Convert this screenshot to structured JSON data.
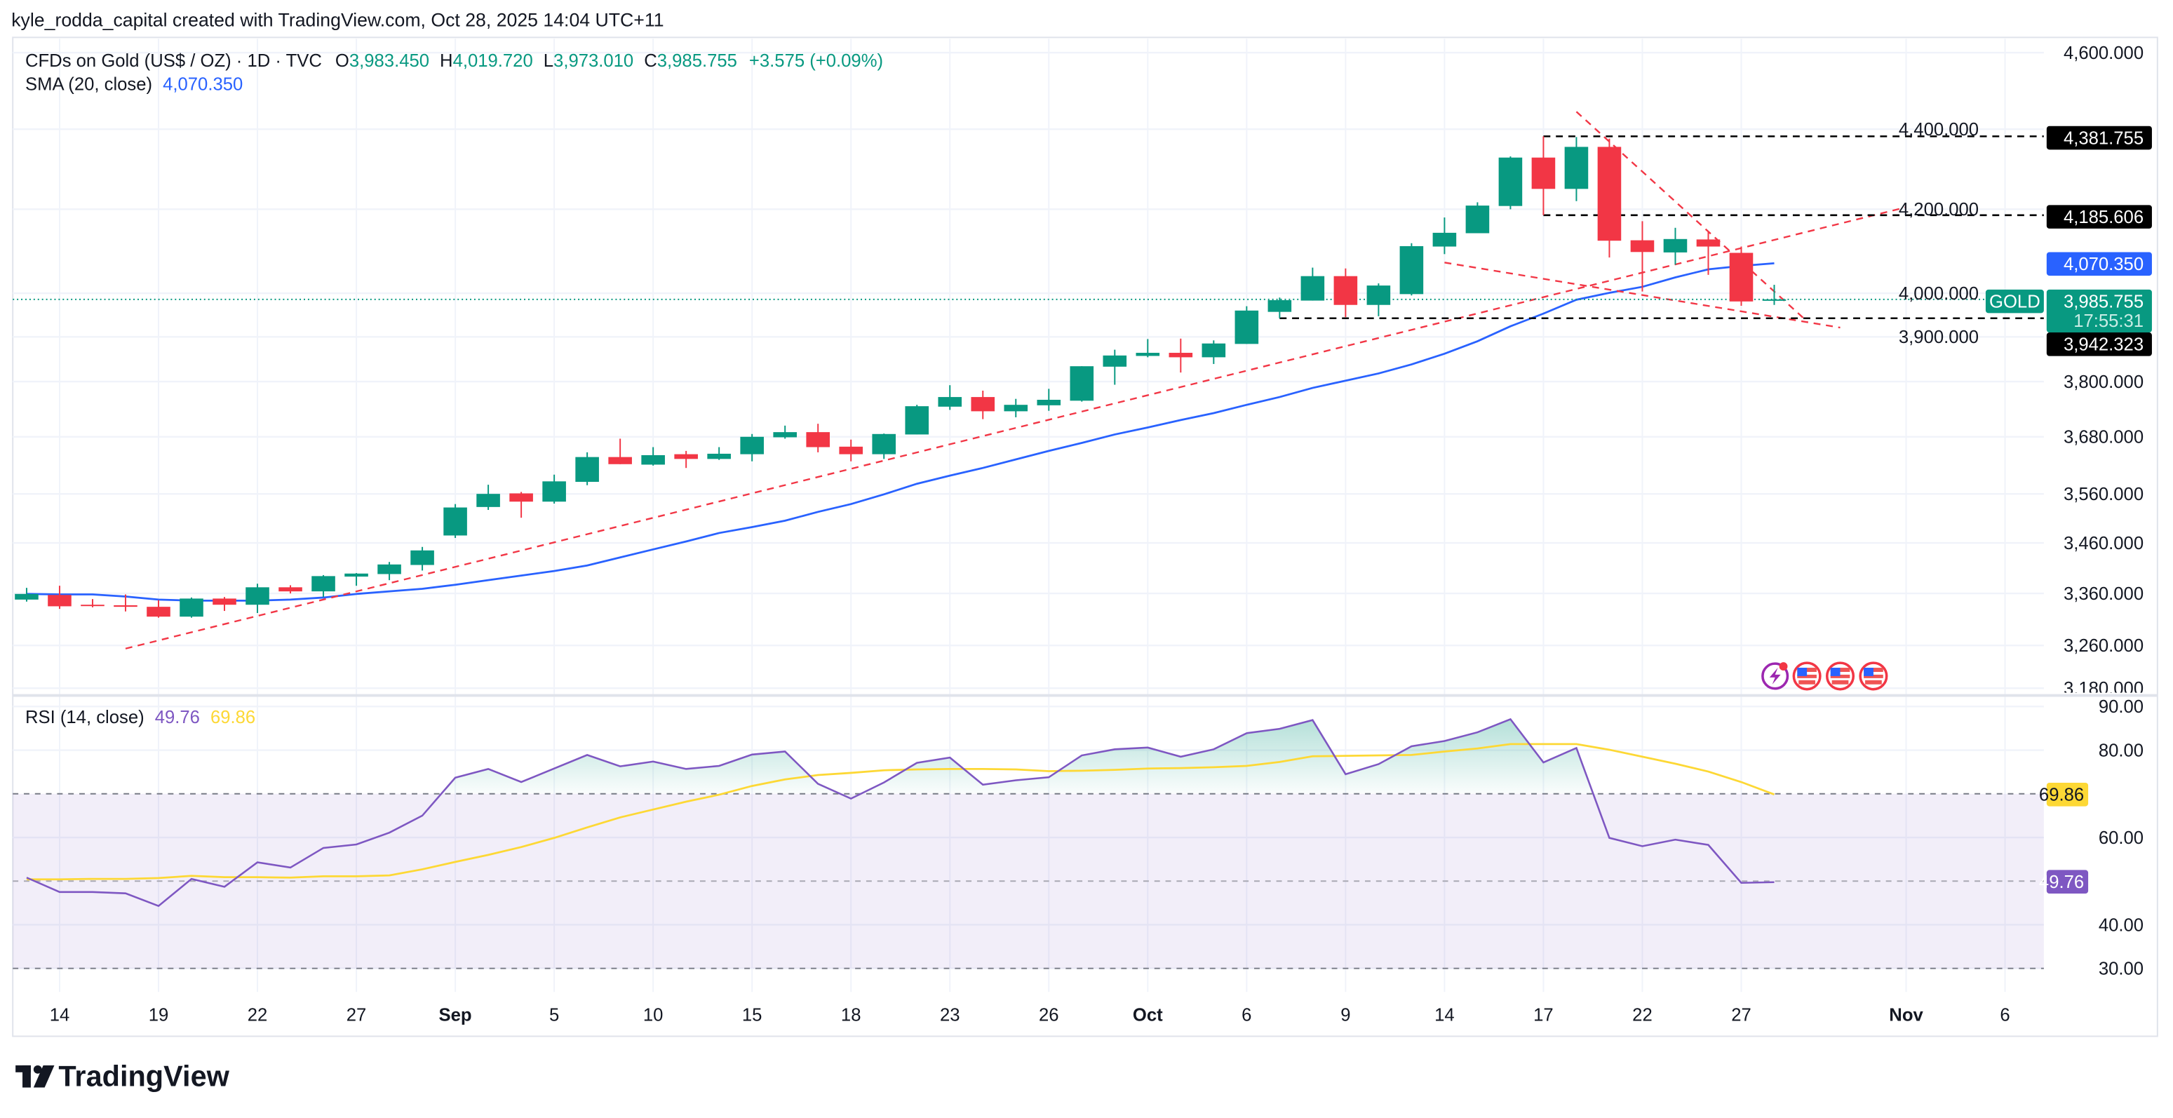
{
  "attribution": "kyle_rodda_capital created with TradingView.com, Oct 28, 2025 14:04 UTC+11",
  "legend": {
    "symbol": "CFDs on Gold (US$ / OZ) · 1D · TVC",
    "o_label": "O",
    "o": "3,983.450",
    "h_label": "H",
    "h": "4,019.720",
    "l_label": "L",
    "l": "3,973.010",
    "c_label": "C",
    "c": "3,985.755",
    "change": "+3.575 (+0.09%)",
    "sma_label": "SMA (20, close)",
    "sma_value": "4,070.350",
    "rsi_label": "RSI (14, close)",
    "rsi_value": "49.76",
    "rsi_ma_value": "69.86"
  },
  "colors": {
    "up": "#089981",
    "down": "#f23645",
    "sma": "#2962ff",
    "rsi": "#7e57c2",
    "rsi_ma": "#fdd835",
    "trendline": "#f23645"
  },
  "badges": {
    "level_high": "4,381.755",
    "level_mid": "4,185.606",
    "sma": "4,070.350",
    "symbol_tag": "GOLD",
    "last_price": "3,985.755",
    "countdown": "17:55:31",
    "level_low": "3,942.323",
    "rsi_ma": "69.86",
    "rsi": "49.76"
  },
  "event_icons": [
    "lightning-icon",
    "us-flag-icon",
    "us-flag-icon",
    "us-flag-icon"
  ],
  "logo_text": "TradingView",
  "chart_data": [
    {
      "type": "candlestick",
      "scale": "log",
      "grid": true,
      "y_ticks": [
        {
          "value": 4600,
          "label": "4,600.000"
        },
        {
          "value": 4400,
          "label": "4,400.000"
        },
        {
          "value": 4200,
          "label": "4,200.000"
        },
        {
          "value": 4000,
          "label": "4,000.000"
        },
        {
          "value": 3900,
          "label": "3,900.000"
        },
        {
          "value": 3800,
          "label": "3,800.000"
        },
        {
          "value": 3680,
          "label": "3,680.000"
        },
        {
          "value": 3560,
          "label": "3,560.000"
        },
        {
          "value": 3460,
          "label": "3,460.000"
        },
        {
          "value": 3360,
          "label": "3,360.000"
        },
        {
          "value": 3260,
          "label": "3,260.000"
        },
        {
          "value": 3180,
          "label": "3,180.000"
        }
      ],
      "x_ticks": [
        {
          "label": "14",
          "date": "2025-08-14"
        },
        {
          "label": "19",
          "date": "2025-08-19"
        },
        {
          "label": "22",
          "date": "2025-08-22"
        },
        {
          "label": "27",
          "date": "2025-08-27"
        },
        {
          "label": "Sep",
          "date": "2025-09-02",
          "month": true
        },
        {
          "label": "5",
          "date": "2025-09-05"
        },
        {
          "label": "10",
          "date": "2025-09-10"
        },
        {
          "label": "15",
          "date": "2025-09-15"
        },
        {
          "label": "18",
          "date": "2025-09-18"
        },
        {
          "label": "23",
          "date": "2025-09-23"
        },
        {
          "label": "26",
          "date": "2025-09-26"
        },
        {
          "label": "Oct",
          "date": "2025-10-01",
          "month": true
        },
        {
          "label": "6",
          "date": "2025-10-06"
        },
        {
          "label": "9",
          "date": "2025-10-09"
        },
        {
          "label": "14",
          "date": "2025-10-14"
        },
        {
          "label": "17",
          "date": "2025-10-17"
        },
        {
          "label": "22",
          "date": "2025-10-22"
        },
        {
          "label": "27",
          "date": "2025-10-27"
        },
        {
          "label": "Nov",
          "date": "2025-11-03",
          "month": true
        },
        {
          "label": "6",
          "date": "2025-11-06"
        }
      ],
      "columns": [
        "date",
        "open",
        "high",
        "low",
        "close"
      ],
      "candles": [
        [
          "2025-08-13",
          3348,
          3371,
          3344,
          3359
        ],
        [
          "2025-08-14",
          3357,
          3375,
          3330,
          3335
        ],
        [
          "2025-08-15",
          3338,
          3349,
          3333,
          3336
        ],
        [
          "2025-08-18",
          3337,
          3358,
          3325,
          3334
        ],
        [
          "2025-08-19",
          3334,
          3347,
          3313,
          3315
        ],
        [
          "2025-08-20",
          3315,
          3352,
          3313,
          3350
        ],
        [
          "2025-08-21",
          3350,
          3353,
          3326,
          3338
        ],
        [
          "2025-08-22",
          3338,
          3379,
          3322,
          3372
        ],
        [
          "2025-08-25",
          3372,
          3376,
          3360,
          3364
        ],
        [
          "2025-08-26",
          3364,
          3396,
          3353,
          3394
        ],
        [
          "2025-08-27",
          3393,
          3400,
          3375,
          3399
        ],
        [
          "2025-08-28",
          3398,
          3422,
          3386,
          3417
        ],
        [
          "2025-08-29",
          3416,
          3452,
          3405,
          3445
        ],
        [
          "2025-09-02",
          3475,
          3539,
          3470,
          3532
        ],
        [
          "2025-09-03",
          3533,
          3579,
          3527,
          3560
        ],
        [
          "2025-09-04",
          3561,
          3564,
          3511,
          3544
        ],
        [
          "2025-09-05",
          3544,
          3600,
          3540,
          3586
        ],
        [
          "2025-09-08",
          3585,
          3647,
          3578,
          3637
        ],
        [
          "2025-09-09",
          3637,
          3676,
          3622,
          3622
        ],
        [
          "2025-09-10",
          3621,
          3658,
          3619,
          3641
        ],
        [
          "2025-09-11",
          3643,
          3650,
          3614,
          3633
        ],
        [
          "2025-09-12",
          3633,
          3658,
          3631,
          3644
        ],
        [
          "2025-09-15",
          3643,
          3686,
          3628,
          3680
        ],
        [
          "2025-09-16",
          3679,
          3704,
          3676,
          3690
        ],
        [
          "2025-09-17",
          3690,
          3708,
          3647,
          3658
        ],
        [
          "2025-09-18",
          3659,
          3674,
          3628,
          3643
        ],
        [
          "2025-09-19",
          3643,
          3687,
          3633,
          3686
        ],
        [
          "2025-09-22",
          3685,
          3749,
          3685,
          3746
        ],
        [
          "2025-09-23",
          3745,
          3792,
          3738,
          3766
        ],
        [
          "2025-09-24",
          3766,
          3780,
          3718,
          3735
        ],
        [
          "2025-09-25",
          3735,
          3762,
          3722,
          3749
        ],
        [
          "2025-09-26",
          3748,
          3784,
          3736,
          3760
        ],
        [
          "2025-09-29",
          3758,
          3834,
          3756,
          3834
        ],
        [
          "2025-09-30",
          3833,
          3871,
          3793,
          3858
        ],
        [
          "2025-10-01",
          3857,
          3895,
          3854,
          3864
        ],
        [
          "2025-10-02",
          3864,
          3896,
          3820,
          3854
        ],
        [
          "2025-10-03",
          3854,
          3892,
          3839,
          3885
        ],
        [
          "2025-10-06",
          3884,
          3970,
          3884,
          3960
        ],
        [
          "2025-10-07",
          3957,
          3990,
          3942.323,
          3984
        ],
        [
          "2025-10-08",
          3983,
          4060,
          3983,
          4040
        ],
        [
          "2025-10-09",
          4040,
          4058,
          3945,
          3973
        ],
        [
          "2025-10-10",
          3973,
          4023,
          3947,
          4018
        ],
        [
          "2025-10-13",
          3998,
          4118,
          3995,
          4111
        ],
        [
          "2025-10-14",
          4110,
          4180,
          4092,
          4143
        ],
        [
          "2025-10-15",
          4142,
          4217,
          4142,
          4209
        ],
        [
          "2025-10-16",
          4208,
          4331,
          4200,
          4328
        ],
        [
          "2025-10-17",
          4328,
          4381.755,
          4185.606,
          4250
        ],
        [
          "2025-10-20",
          4250,
          4380,
          4220,
          4355
        ],
        [
          "2025-10-21",
          4355,
          4376,
          4084,
          4124
        ],
        [
          "2025-10-22",
          4125,
          4171,
          4004,
          4097
        ],
        [
          "2025-10-23",
          4096,
          4155,
          4067,
          4128
        ],
        [
          "2025-10-24",
          4127,
          4145,
          4043,
          4110
        ],
        [
          "2025-10-27",
          4095,
          4110,
          3971,
          3981
        ],
        [
          "2025-10-28",
          3983.45,
          4019.72,
          3973.01,
          3985.755
        ]
      ],
      "sma20": [
        3359,
        3358,
        3358,
        3354,
        3348,
        3346,
        3346,
        3346,
        3348,
        3352,
        3359,
        3364,
        3369,
        3377,
        3386,
        3395,
        3404,
        3415,
        3431,
        3447,
        3463,
        3480,
        3492,
        3505,
        3523,
        3539,
        3559,
        3581,
        3598,
        3614,
        3632,
        3650,
        3667,
        3685,
        3700,
        3716,
        3731,
        3749,
        3766,
        3786,
        3802,
        3818,
        3838,
        3862,
        3890,
        3924,
        3953,
        3985,
        4001,
        4015,
        4037,
        4056,
        4064,
        4070.35
      ],
      "last_price": 3985.755,
      "horizontal_levels": [
        {
          "price": 4381.755,
          "from": "2025-10-17"
        },
        {
          "price": 4185.606,
          "from": "2025-10-17"
        },
        {
          "price": 3942.323,
          "from": "2025-10-07"
        }
      ],
      "trendlines": [
        {
          "from": {
            "date": "2025-08-18",
            "price": 3254
          },
          "to": {
            "date": "2025-11-03",
            "price": 4205
          }
        },
        {
          "from": {
            "date": "2025-10-20",
            "price": 4445
          },
          "to": {
            "date": "2025-10-29",
            "price": 3935
          }
        },
        {
          "from": {
            "date": "2025-10-14",
            "price": 4072
          },
          "to": {
            "date": "2025-10-30",
            "price": 3921
          }
        }
      ]
    },
    {
      "type": "line",
      "ylim": [
        30,
        90
      ],
      "y_ticks": [
        {
          "value": 90,
          "label": "90.00"
        },
        {
          "value": 80,
          "label": "80.00"
        },
        {
          "value": 60,
          "label": "60.00"
        },
        {
          "value": 40,
          "label": "40.00"
        },
        {
          "value": 30,
          "label": "30.00"
        }
      ],
      "bands": {
        "upper": 70,
        "middle": 50,
        "lower": 30
      },
      "rsi": [
        50.8,
        47.5,
        47.5,
        47.2,
        44.3,
        50.5,
        48.7,
        54.3,
        53.1,
        57.6,
        58.4,
        61.1,
        65.0,
        73.7,
        75.7,
        72.7,
        75.8,
        78.9,
        76.3,
        77.4,
        75.7,
        76.4,
        79.0,
        79.7,
        72.3,
        68.9,
        72.6,
        77.1,
        78.3,
        72.1,
        73.1,
        73.8,
        78.8,
        80.2,
        80.6,
        78.5,
        80.2,
        83.9,
        84.9,
        86.9,
        74.5,
        76.8,
        80.9,
        82.1,
        84.1,
        87.1,
        77.2,
        80.5,
        59.9,
        58.0,
        59.5,
        58.3,
        49.6,
        49.76
      ],
      "rsi_ma": [
        50.4,
        50.4,
        50.5,
        50.5,
        50.7,
        51.2,
        50.9,
        50.9,
        50.8,
        51.1,
        51.1,
        51.3,
        52.7,
        54.4,
        56.0,
        57.8,
        59.9,
        62.3,
        64.6,
        66.4,
        68.2,
        69.8,
        71.8,
        73.3,
        74.3,
        74.8,
        75.4,
        75.6,
        75.7,
        75.7,
        75.6,
        75.2,
        75.3,
        75.5,
        75.8,
        75.9,
        76.1,
        76.4,
        77.3,
        78.6,
        78.7,
        78.8,
        78.9,
        79.7,
        80.4,
        81.4,
        81.4,
        81.4,
        80.1,
        78.5,
        76.9,
        75.1,
        72.7,
        69.86
      ]
    }
  ]
}
